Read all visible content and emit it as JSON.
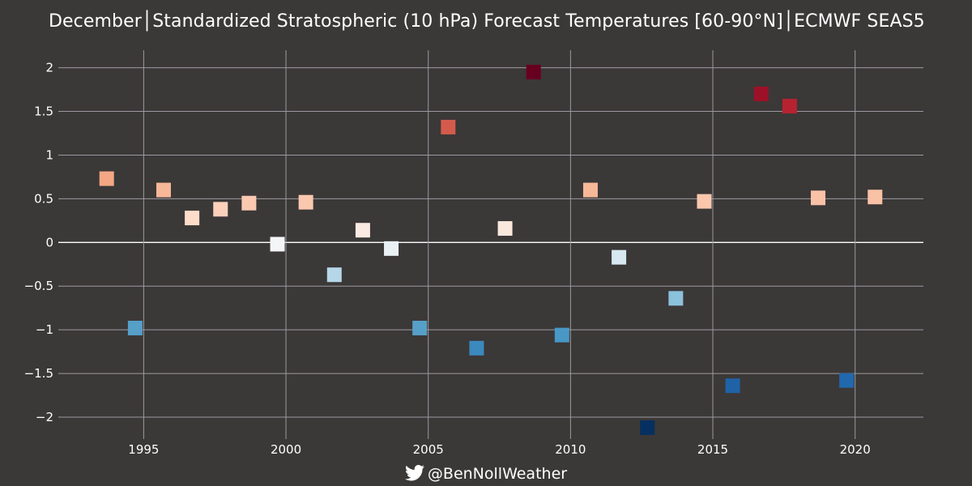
{
  "chart_data": {
    "type": "scatter",
    "title": "December│Standardized Stratospheric (10 hPa) Forecast Temperatures [60-90°N]│ECMWF SEAS5",
    "xlabel": "",
    "ylabel": "",
    "xlim": [
      1992.0,
      2022.4
    ],
    "ylim": [
      -2.25,
      2.2
    ],
    "x_ticks": [
      1995,
      2000,
      2005,
      2010,
      2015,
      2020
    ],
    "y_ticks": [
      2,
      1.5,
      1,
      0.5,
      0,
      -0.5,
      -1,
      -1.5,
      -2
    ],
    "y_tick_labels": [
      "2",
      "1.5",
      "1",
      "0.5",
      "0",
      "−0.5",
      "−1",
      "−1.5",
      "−2"
    ],
    "grid": true,
    "zero_line": true,
    "marker": "square",
    "color_scale": "diverging red-blue (warm = red, cold = blue)",
    "points": [
      {
        "x": 1993.7,
        "y": 0.73
      },
      {
        "x": 1994.7,
        "y": -0.98
      },
      {
        "x": 1995.7,
        "y": 0.6
      },
      {
        "x": 1996.7,
        "y": 0.28
      },
      {
        "x": 1997.7,
        "y": 0.38
      },
      {
        "x": 1998.7,
        "y": 0.45
      },
      {
        "x": 1999.7,
        "y": -0.02
      },
      {
        "x": 2000.7,
        "y": 0.46
      },
      {
        "x": 2001.7,
        "y": -0.37
      },
      {
        "x": 2002.7,
        "y": 0.14
      },
      {
        "x": 2003.7,
        "y": -0.07
      },
      {
        "x": 2004.7,
        "y": -0.98
      },
      {
        "x": 2005.7,
        "y": 1.32
      },
      {
        "x": 2006.7,
        "y": -1.21
      },
      {
        "x": 2007.7,
        "y": 0.16
      },
      {
        "x": 2008.7,
        "y": 1.95
      },
      {
        "x": 2009.7,
        "y": -1.06
      },
      {
        "x": 2010.7,
        "y": 0.6
      },
      {
        "x": 2011.7,
        "y": -0.17
      },
      {
        "x": 2012.7,
        "y": -2.12
      },
      {
        "x": 2013.7,
        "y": -0.64
      },
      {
        "x": 2014.7,
        "y": 0.47
      },
      {
        "x": 2015.7,
        "y": -1.64
      },
      {
        "x": 2016.7,
        "y": 1.7
      },
      {
        "x": 2017.7,
        "y": 1.56
      },
      {
        "x": 2018.7,
        "y": 0.51
      },
      {
        "x": 2019.7,
        "y": -1.58
      },
      {
        "x": 2020.7,
        "y": 0.52
      }
    ]
  },
  "credit": {
    "icon": "twitter-bird-icon",
    "handle": "@BenNollWeather"
  },
  "colors": {
    "background": "#3b3838",
    "grid": "#9c9aa0",
    "text": "#ffffff"
  }
}
